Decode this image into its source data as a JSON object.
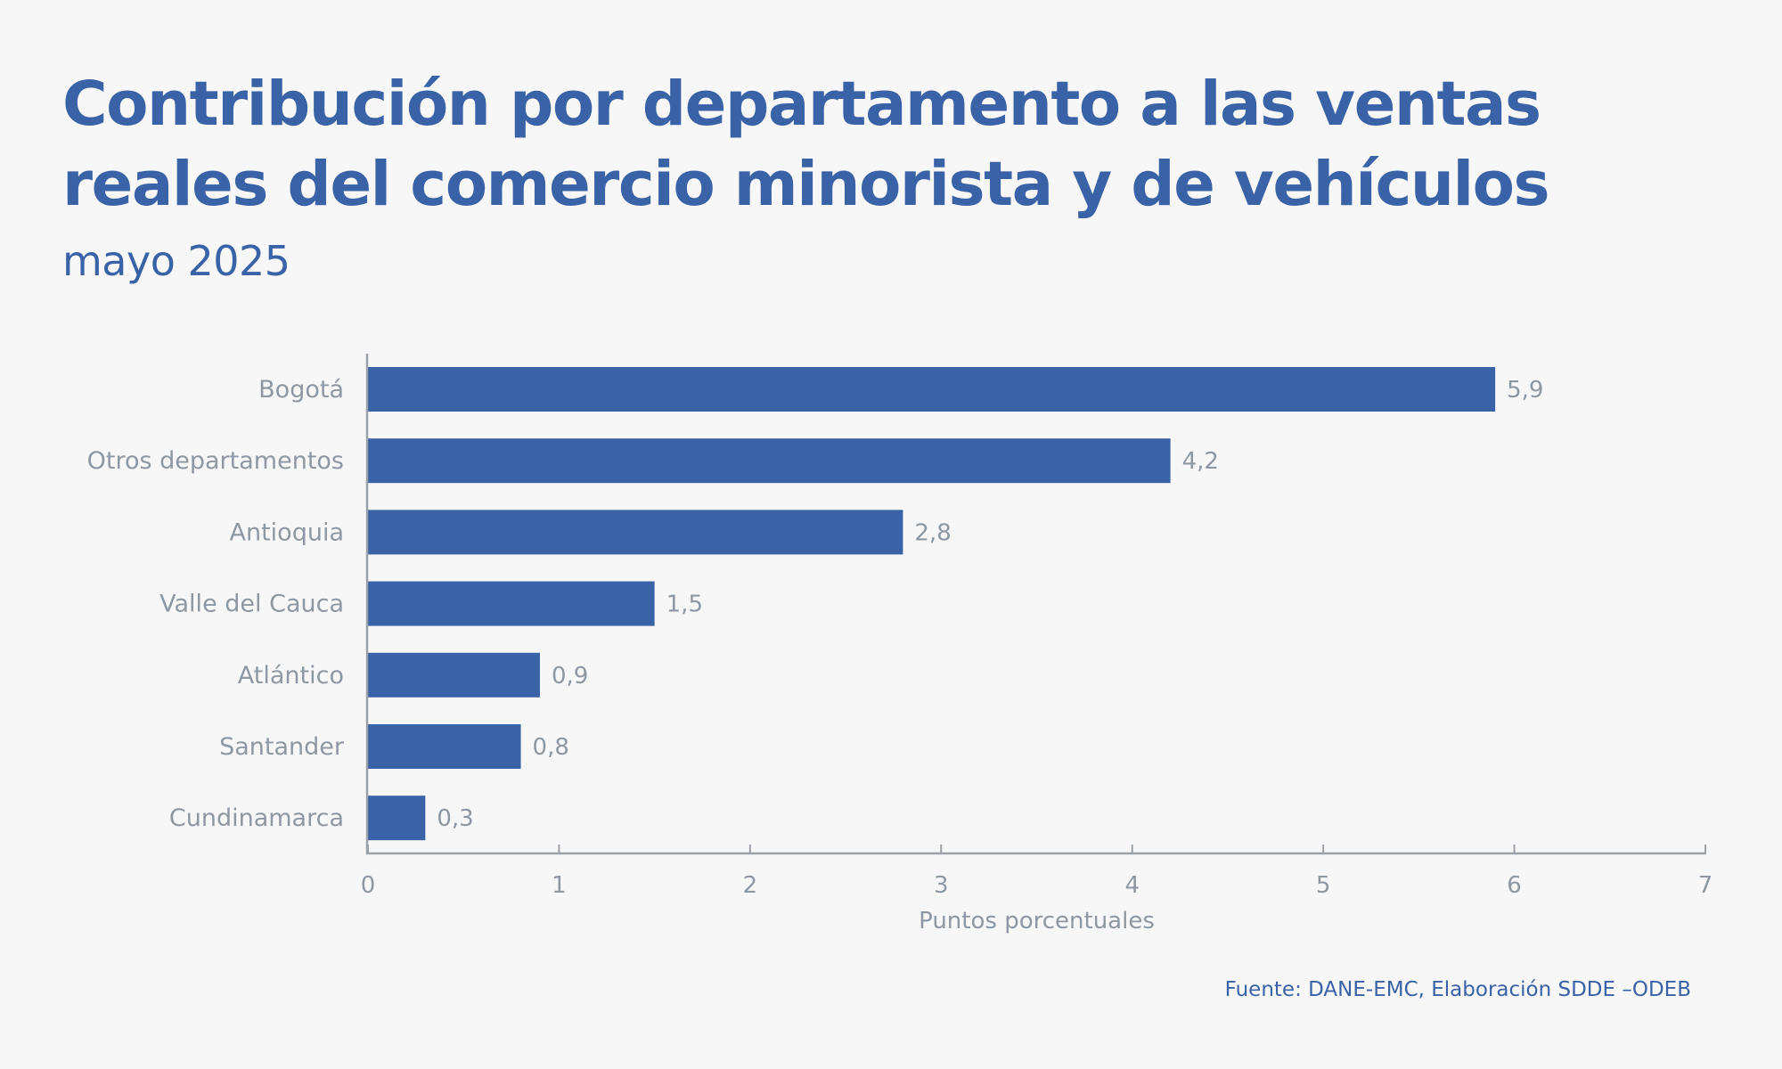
{
  "title": "Contribución por departamento a las ventas reales del comercio minorista y de vehículos",
  "subtitle": "mayo 2025",
  "source": "Fuente: DANE-EMC, Elaboración SDDE –ODEB",
  "colors": {
    "bar": "#3a62a7",
    "title": "#3a62a7",
    "axis": "#9aa1a8",
    "label": "#8e98a3",
    "background": "#f7f7f7"
  },
  "chart_data": {
    "type": "bar",
    "orientation": "horizontal",
    "title": "Contribución por departamento a las ventas reales del comercio minorista y de vehículos",
    "subtitle": "mayo 2025",
    "categories": [
      "Bogotá",
      "Otros departamentos",
      "Antioquia",
      "Valle del Cauca",
      "Atlántico",
      "Santander",
      "Cundinamarca"
    ],
    "values": [
      5.9,
      4.2,
      2.8,
      1.5,
      0.9,
      0.8,
      0.3
    ],
    "value_labels": [
      "5,9",
      "4,2",
      "2,8",
      "1,5",
      "0,9",
      "0,8",
      "0,3"
    ],
    "xlabel": "Puntos porcentuales",
    "ylabel": "",
    "xlim": [
      0,
      7
    ],
    "xticks": [
      0,
      1,
      2,
      3,
      4,
      5,
      6,
      7
    ],
    "xtick_labels": [
      "0",
      "1",
      "2",
      "3",
      "4",
      "5",
      "6",
      "7"
    ],
    "grid": false,
    "legend": "none"
  }
}
